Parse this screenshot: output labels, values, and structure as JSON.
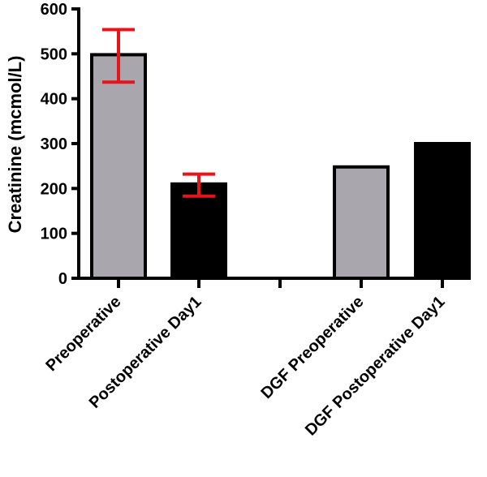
{
  "chart_data": {
    "type": "bar",
    "title": "",
    "xlabel": "",
    "ylabel": "Creatinine (mcmol/L)",
    "ylim": [
      0,
      600
    ],
    "yticks": [
      0,
      100,
      200,
      300,
      400,
      500,
      600
    ],
    "grid": false,
    "legend": "none",
    "categories": [
      "Preoperative",
      "Postoperative Day1",
      "",
      "DGF Preoperative",
      "DGF Postoperative Day1"
    ],
    "values": [
      498,
      210,
      null,
      248,
      300
    ],
    "error_low": [
      437,
      183,
      null,
      null,
      null
    ],
    "error_high": [
      554,
      232,
      null,
      null,
      null
    ],
    "bar_colors": [
      "#a9a6ad",
      "#000000",
      null,
      "#a9a6ad",
      "#000000"
    ],
    "error_color": "#e8141b"
  }
}
